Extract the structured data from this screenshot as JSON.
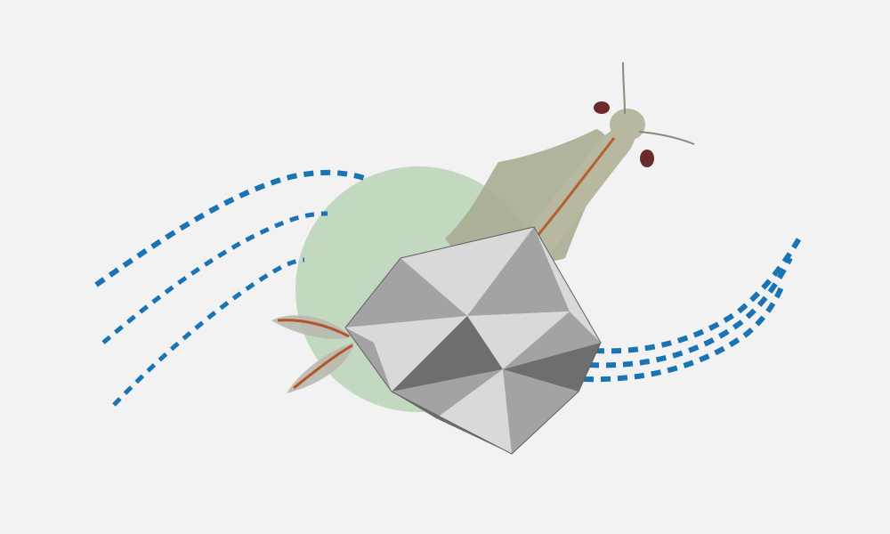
{
  "scene": {
    "background_color": "#f2f2f2",
    "circle_color": "#c3d8c0",
    "dash_color": "#1a73b3",
    "polyhedron": {
      "light": "#d9d9d9",
      "mid": "#a3a3a3",
      "dark": "#6e6e6e",
      "outline": "#5f5f5f"
    },
    "creature": {
      "body": "#b8b8a0",
      "legs": "#a8ad92",
      "stripe": "#b4602f",
      "eye": "#6b2b2b",
      "antenna": "#8a8a7a"
    },
    "tail_feather": {
      "fill": "#b9b9ae",
      "stem": "#b4562b"
    }
  }
}
